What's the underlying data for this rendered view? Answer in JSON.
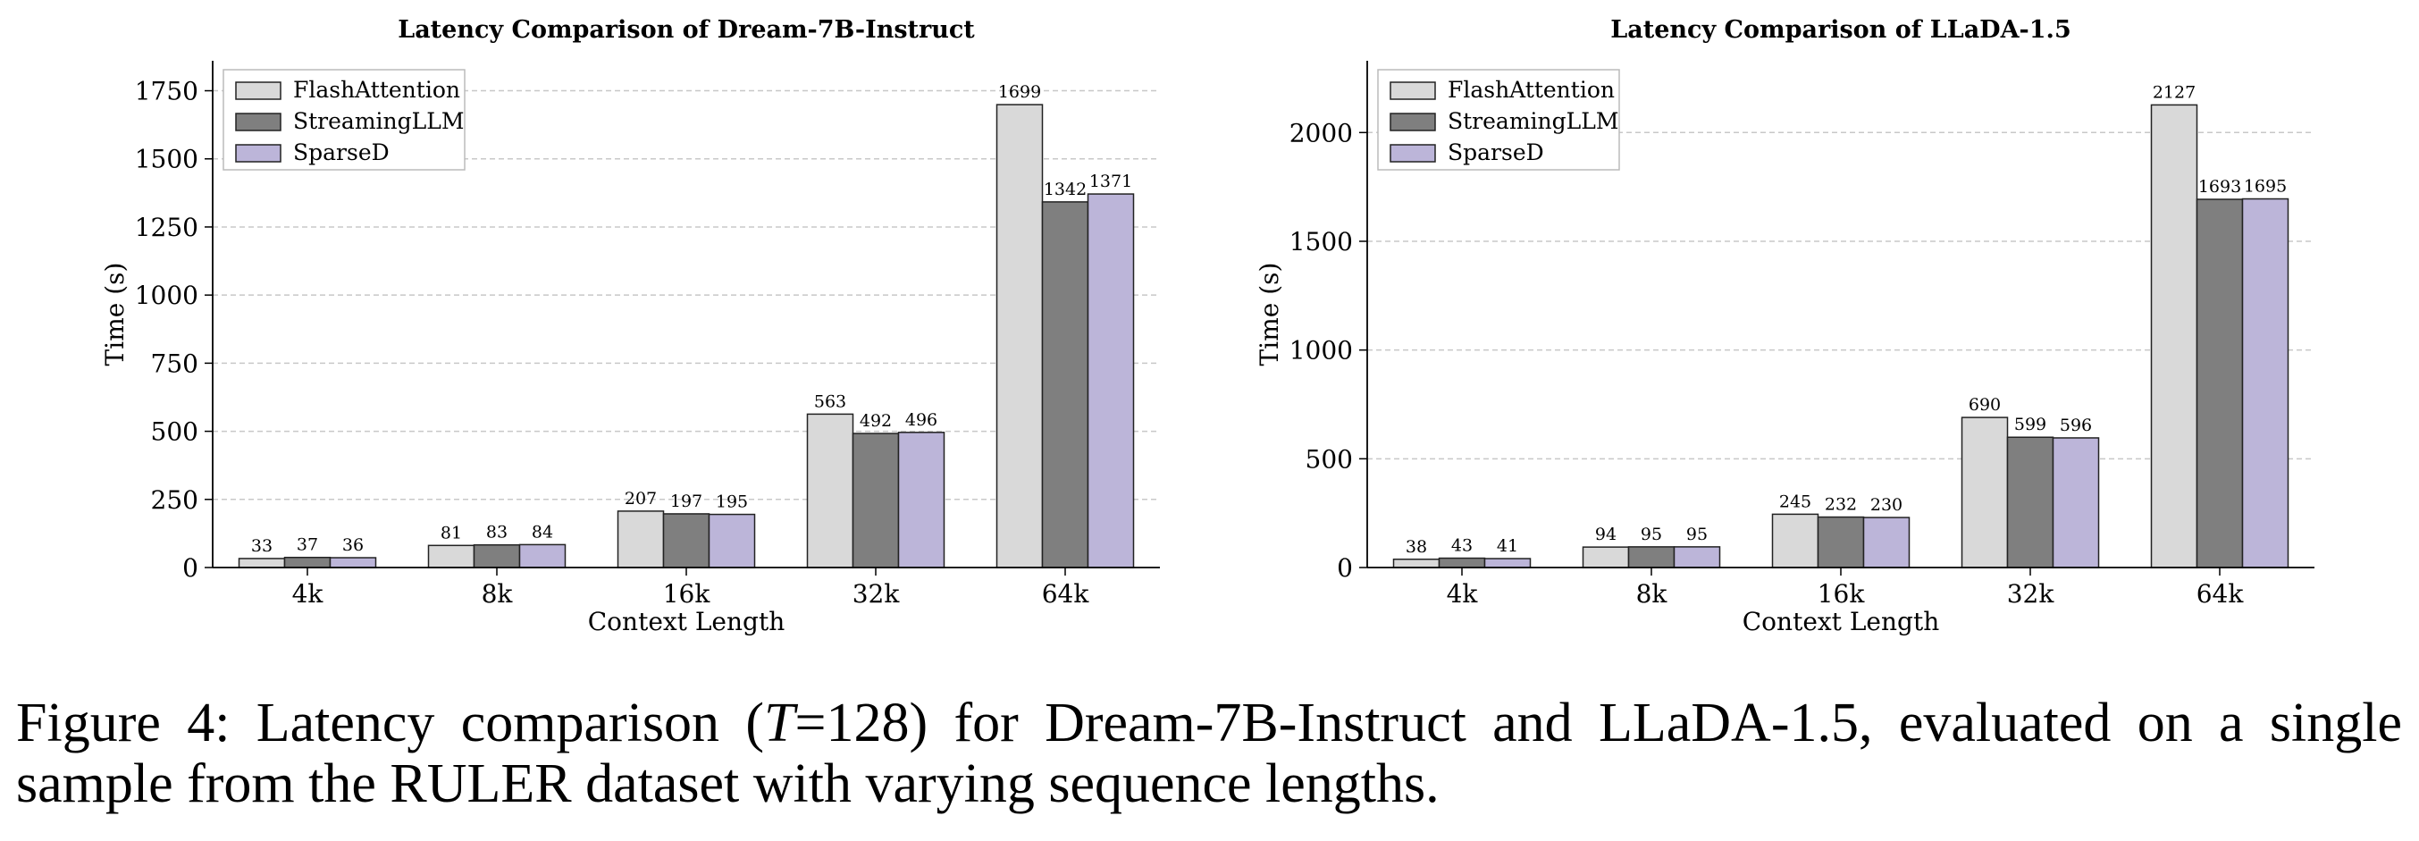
{
  "chart_data": [
    {
      "type": "bar",
      "title": "Latency Comparison of Dream-7B-Instruct",
      "xlabel": "Context Length",
      "ylabel": "Time (s)",
      "categories": [
        "4k",
        "8k",
        "16k",
        "32k",
        "64k"
      ],
      "series": [
        {
          "name": "FlashAttention",
          "color": "#d9d9d9",
          "values": [
            33,
            81,
            207,
            563,
            1699
          ]
        },
        {
          "name": "StreamingLLM",
          "color": "#7f7f7f",
          "values": [
            37,
            83,
            197,
            492,
            1342
          ]
        },
        {
          "name": "SparseD",
          "color": "#bcb5d9",
          "values": [
            36,
            84,
            195,
            496,
            1371
          ]
        }
      ],
      "yticks": [
        0,
        250,
        500,
        750,
        1000,
        1250,
        1500,
        1750
      ],
      "ylim": [
        0,
        1860
      ],
      "grid": "y-dashed",
      "legend": "top-left"
    },
    {
      "type": "bar",
      "title": "Latency Comparison of LLaDA-1.5",
      "xlabel": "Context Length",
      "ylabel": "Time (s)",
      "categories": [
        "4k",
        "8k",
        "16k",
        "32k",
        "64k"
      ],
      "series": [
        {
          "name": "FlashAttention",
          "color": "#d9d9d9",
          "values": [
            38,
            94,
            245,
            690,
            2127
          ]
        },
        {
          "name": "StreamingLLM",
          "color": "#7f7f7f",
          "values": [
            43,
            95,
            232,
            599,
            1693
          ]
        },
        {
          "name": "SparseD",
          "color": "#bcb5d9",
          "values": [
            41,
            95,
            230,
            596,
            1695
          ]
        }
      ],
      "yticks": [
        0,
        500,
        1000,
        1500,
        2000
      ],
      "ylim": [
        0,
        2330
      ],
      "grid": "y-dashed",
      "legend": "top-left"
    }
  ],
  "caption": {
    "prefix": "Figure 4: Latency comparison (",
    "symbol": "T",
    "suffix": "=128) for Dream-7B-Instruct and LLaDA-1.5, evaluated on a single sample from the RULER dataset with varying sequence lengths."
  }
}
